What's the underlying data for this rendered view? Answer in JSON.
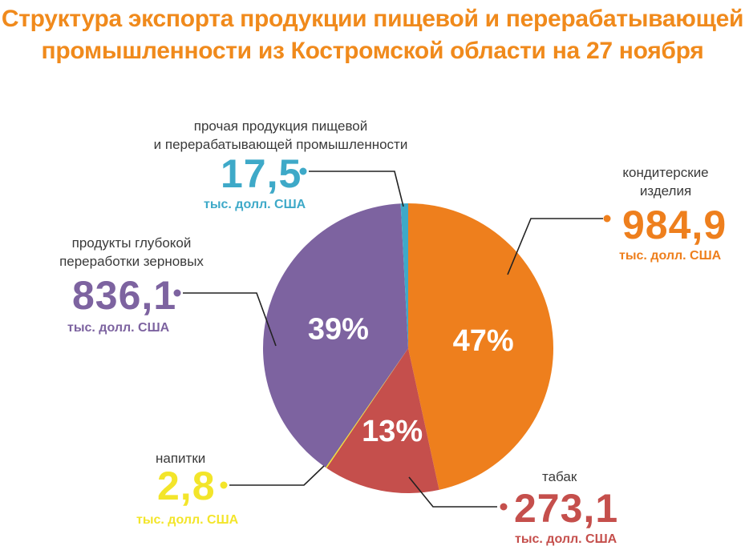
{
  "title": {
    "line1": "Структура экспорта продукции пищевой и перерабатывающей",
    "line2": "промышленности из Костромской области на 27 ноября"
  },
  "chart_data": {
    "type": "pie",
    "unit": "тыс. долл. США",
    "slices": [
      {
        "key": "konditer",
        "label_lines": [
          "кондитерские",
          "изделия"
        ],
        "value": 984.9,
        "value_text": "984,9",
        "percent_text": "47%",
        "color": "#ee7f1d"
      },
      {
        "key": "tabak",
        "label_lines": [
          "табак"
        ],
        "value": 273.1,
        "value_text": "273,1",
        "percent_text": "13%",
        "color": "#c54f4c"
      },
      {
        "key": "napitki",
        "label_lines": [
          "напитки"
        ],
        "value": 2.8,
        "value_text": "2,8",
        "percent_text": "",
        "color": "#f3e52a"
      },
      {
        "key": "zernovye",
        "label_lines": [
          "продукты глубокой",
          "переработки зерновых"
        ],
        "value": 836.1,
        "value_text": "836,1",
        "percent_text": "39%",
        "color": "#7d63a0"
      },
      {
        "key": "prochaya",
        "label_lines": [
          "прочая продукция пищевой",
          "и перерабатывающей промышленности"
        ],
        "value": 17.5,
        "value_text": "17,5",
        "percent_text": "",
        "color": "#3ea9c8"
      }
    ]
  }
}
